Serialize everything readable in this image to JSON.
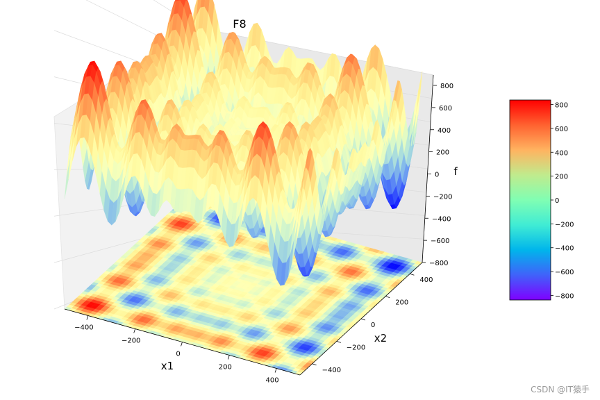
{
  "chart_data": {
    "type": "surface3d",
    "title": "F8",
    "xlabel": "x1",
    "ylabel": "x2",
    "zlabel": "f",
    "xticks": [
      "−400",
      "−200",
      "0",
      "200",
      "400"
    ],
    "xtick_values": [
      -400,
      -200,
      0,
      200,
      400
    ],
    "yticks": [
      "−400",
      "−200",
      "0",
      "200",
      "400"
    ],
    "ytick_values": [
      -400,
      -200,
      0,
      200,
      400
    ],
    "zticks": [
      "−800",
      "−600",
      "−400",
      "−200",
      "0",
      "200",
      "400",
      "600",
      "800"
    ],
    "ztick_values": [
      -800,
      -600,
      -400,
      -200,
      0,
      200,
      400,
      600,
      800
    ],
    "xlim": [
      -500,
      500
    ],
    "ylim": [
      -500,
      500
    ],
    "zlim": [
      -837.97,
      837.97
    ],
    "function": "f(x1,x2) = -x1*sin(sqrt(|x1|)) - x2*sin(sqrt(|x2|))",
    "colormap": "rainbow",
    "projected_contour": "filled contour at bottom (z offset)",
    "grid": true,
    "colorbar": {
      "ticks": [
        "−800",
        "−600",
        "−400",
        "−200",
        "0",
        "200",
        "400",
        "600",
        "800"
      ],
      "values": [
        -800,
        -600,
        -400,
        -200,
        0,
        200,
        400,
        600,
        800
      ],
      "range": [
        -837.97,
        837.97
      ],
      "placement": "right"
    }
  },
  "watermark": "CSDN @IT猿手"
}
